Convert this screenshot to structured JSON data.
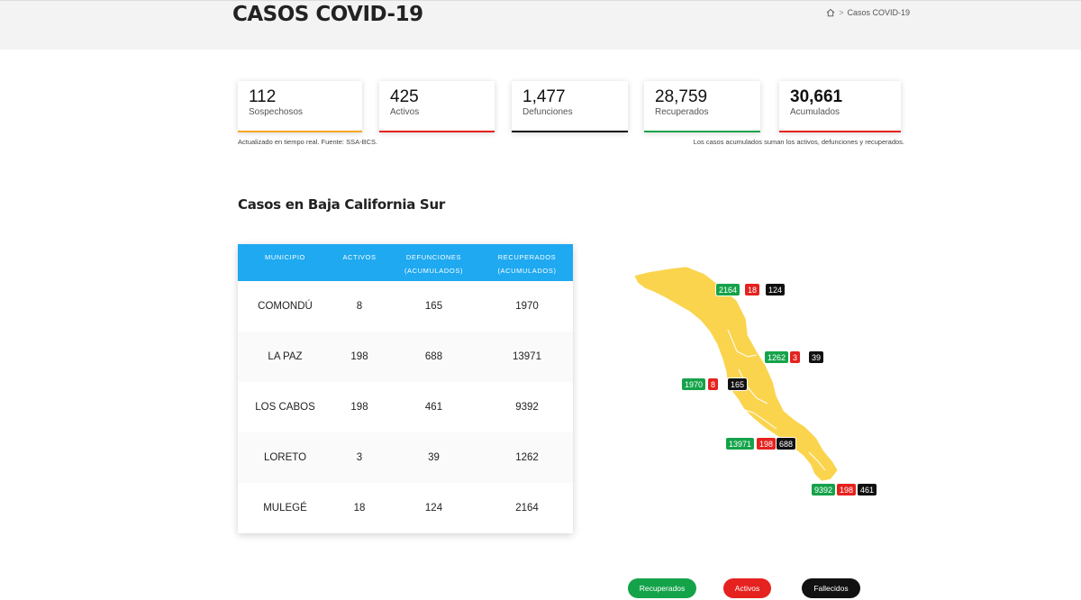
{
  "header": {
    "title": "CASOS COVID-19",
    "breadcrumb_current": "Casos COVID-19",
    "breadcrumb_sep": ">"
  },
  "cards": [
    {
      "value": "112",
      "label": "Sospechosos",
      "color": "#f5a623"
    },
    {
      "value": "425",
      "label": "Activos",
      "color": "#e5221f"
    },
    {
      "value": "1,477",
      "label": "Defunciones",
      "color": "#111111"
    },
    {
      "value": "28,759",
      "label": "Recuperados",
      "color": "#15a34a"
    },
    {
      "value": "30,661",
      "label": "Acumulados",
      "color": "#e5221f"
    }
  ],
  "notes": {
    "left": "Actualizado en tiempo real. Fuente: SSA-BCS.",
    "right": "Los casos acumulados suman los activos, defunciones y recuperados."
  },
  "section_title": "Casos en Baja California Sur",
  "table": {
    "headers": [
      "Municipio",
      "Activos",
      "Defunciones (acumulados)",
      "Recuperados (acumulados)"
    ],
    "rows": [
      [
        "COMONDÚ",
        "8",
        "165",
        "1970"
      ],
      [
        "LA PAZ",
        "198",
        "688",
        "13971"
      ],
      [
        "LOS CABOS",
        "198",
        "461",
        "9392"
      ],
      [
        "LORETO",
        "3",
        "39",
        "1262"
      ],
      [
        "MULEGÉ",
        "18",
        "124",
        "2164"
      ]
    ]
  },
  "map_badges": [
    {
      "municipio": "MULEGÉ",
      "recuperados": "2164",
      "activos": "18",
      "fallecidos": "124"
    },
    {
      "municipio": "LORETO",
      "recuperados": "1262",
      "activos": "3",
      "fallecidos": "39"
    },
    {
      "municipio": "COMONDÚ",
      "recuperados": "1970",
      "activos": "8",
      "fallecidos": "165"
    },
    {
      "municipio": "LA PAZ",
      "recuperados": "13971",
      "activos": "198",
      "fallecidos": "688"
    },
    {
      "municipio": "LOS CABOS",
      "recuperados": "9392",
      "activos": "198",
      "fallecidos": "461"
    }
  ],
  "legend": {
    "recuperados": "Recuperados",
    "activos": "Activos",
    "fallecidos": "Fallecidos"
  },
  "colors": {
    "accent_blue": "#1ea9f0",
    "map_fill": "#fbd44e",
    "green": "#15a34a",
    "red": "#e5221f",
    "black": "#111111"
  }
}
